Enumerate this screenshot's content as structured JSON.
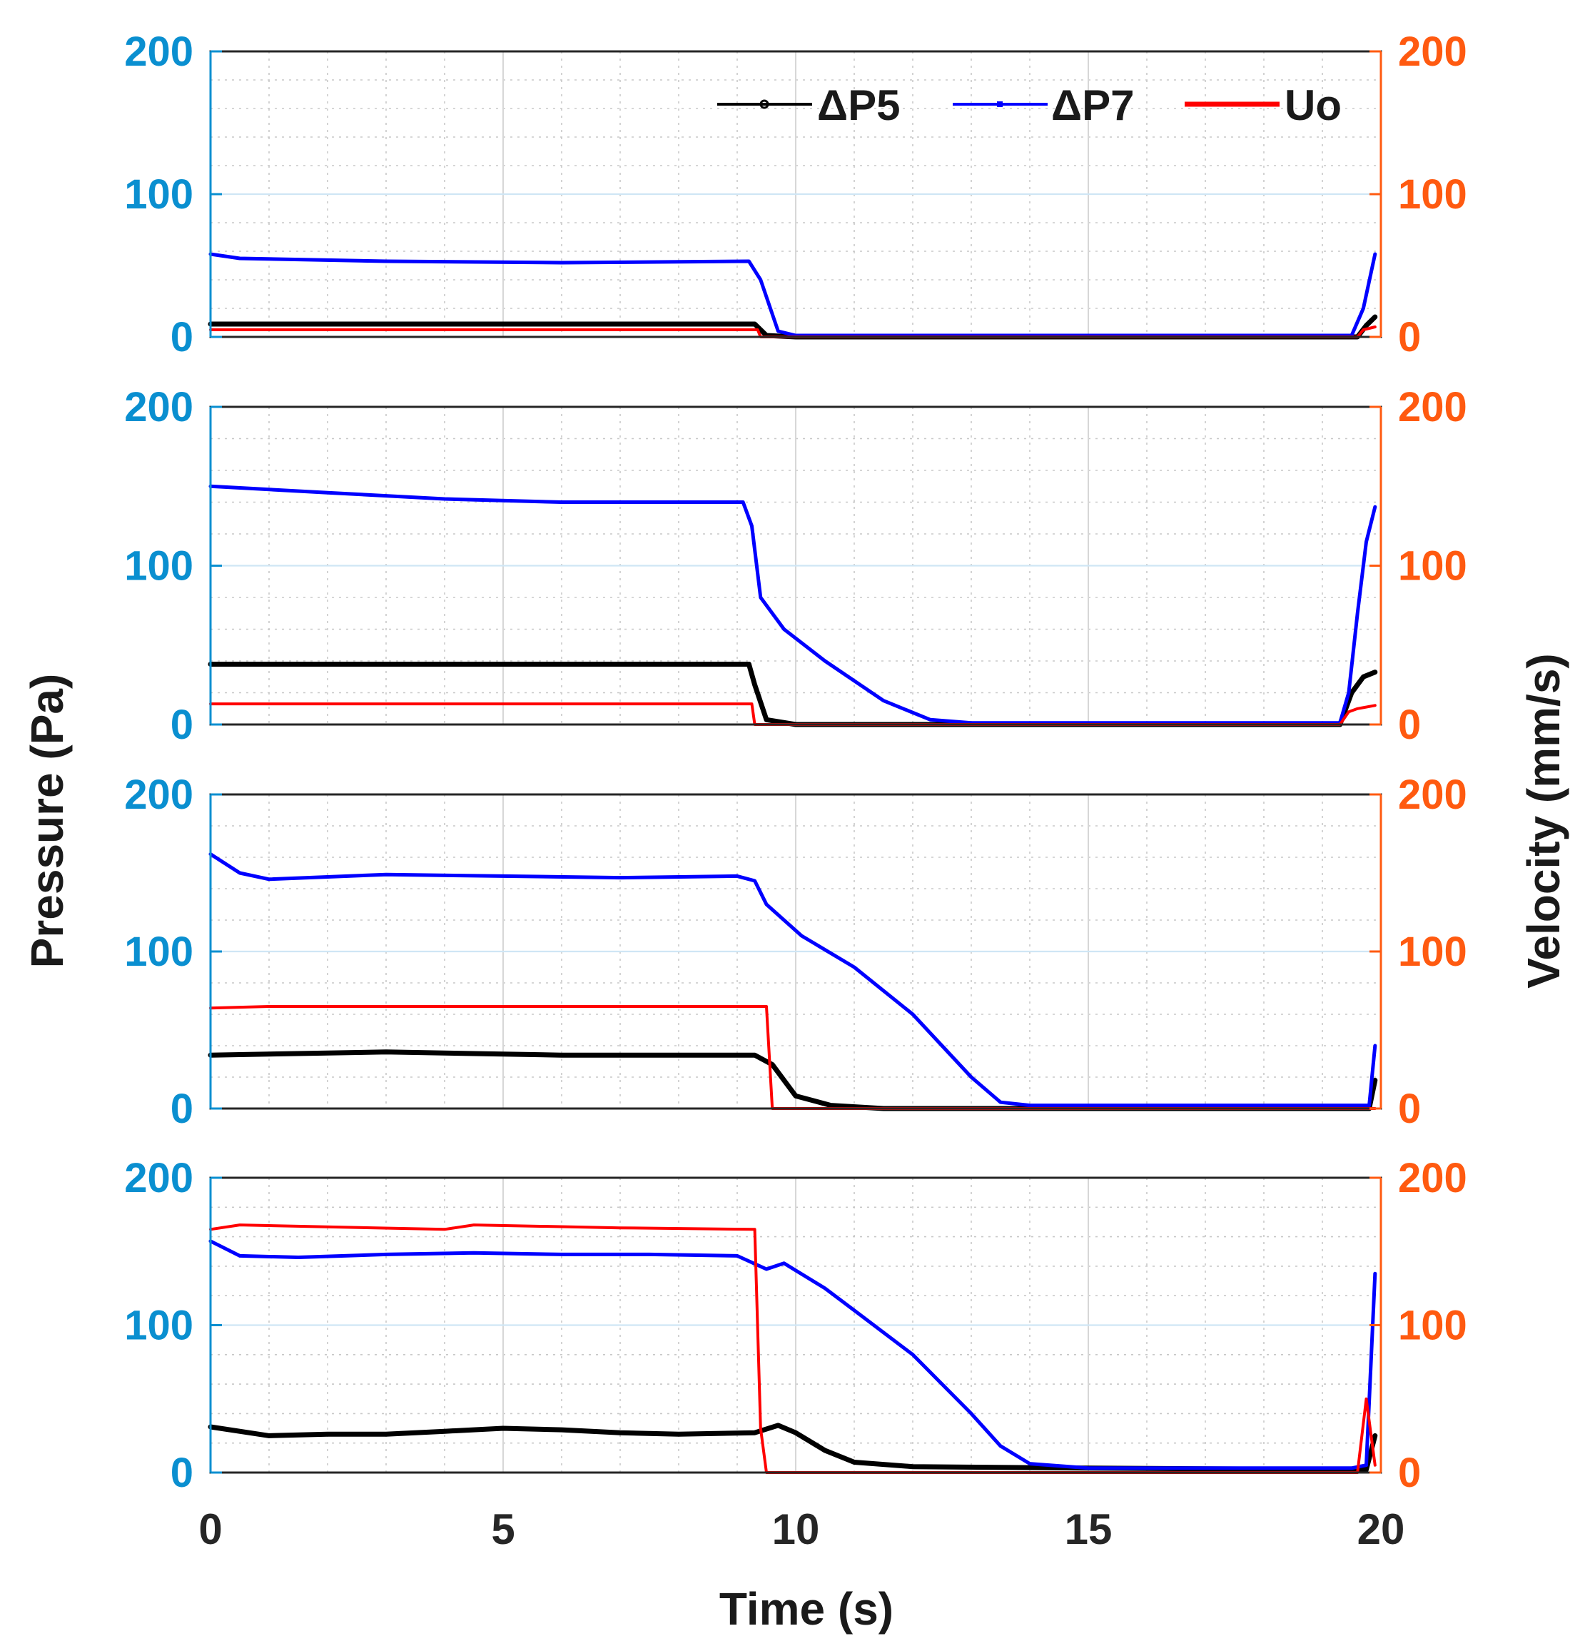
{
  "chart_data": {
    "type": "line",
    "x_label": "Time (s)",
    "y_left_label": "Pressure (Pa)",
    "y_right_label": "Velocity (mm/s)",
    "xlim": [
      0,
      20
    ],
    "x_ticks": [
      "0",
      "5",
      "10",
      "15",
      "20"
    ],
    "grid": "on (major and dotted minor)",
    "legend": {
      "placement": "top-right of top panel",
      "entries": [
        "ΔP5",
        "ΔP7",
        "Uo"
      ]
    },
    "colors": {
      "dp5": "#000000",
      "dp7": "#0000ff",
      "uo": "#ff0000",
      "left_axis": "#0a8fd0",
      "right_axis": "#ff5a10"
    },
    "panels": [
      {
        "ylim_left": [
          0,
          200
        ],
        "ylim_right": [
          0,
          200
        ],
        "left_ticks": [
          "0",
          "100",
          "200"
        ],
        "right_ticks": [
          "0",
          "100",
          "200"
        ],
        "series": [
          {
            "name": "ΔP5",
            "axis": "left",
            "points": [
              [
                0,
                9
              ],
              [
                9.3,
                9
              ],
              [
                9.5,
                1
              ],
              [
                10,
                0
              ],
              [
                19.6,
                0
              ],
              [
                19.75,
                8
              ],
              [
                19.9,
                14
              ]
            ]
          },
          {
            "name": "ΔP7",
            "axis": "left",
            "points": [
              [
                0,
                58
              ],
              [
                0.5,
                55
              ],
              [
                3,
                53
              ],
              [
                6,
                52
              ],
              [
                9.2,
                53
              ],
              [
                9.4,
                40
              ],
              [
                9.7,
                4
              ],
              [
                10,
                1
              ],
              [
                19.5,
                1
              ],
              [
                19.7,
                20
              ],
              [
                19.9,
                58
              ]
            ]
          },
          {
            "name": "Uo",
            "axis": "right",
            "points": [
              [
                0,
                5
              ],
              [
                9.35,
                5
              ],
              [
                9.4,
                0
              ],
              [
                19.6,
                0
              ],
              [
                19.7,
                5
              ],
              [
                19.9,
                7
              ]
            ]
          }
        ]
      },
      {
        "ylim_left": [
          0,
          200
        ],
        "ylim_right": [
          0,
          200
        ],
        "left_ticks": [
          "0",
          "100",
          "200"
        ],
        "right_ticks": [
          "0",
          "100",
          "200"
        ],
        "series": [
          {
            "name": "ΔP5",
            "axis": "left",
            "points": [
              [
                0,
                38
              ],
              [
                9.2,
                38
              ],
              [
                9.3,
                25
              ],
              [
                9.5,
                3
              ],
              [
                10,
                0
              ],
              [
                19.3,
                0
              ],
              [
                19.5,
                20
              ],
              [
                19.7,
                30
              ],
              [
                19.9,
                33
              ]
            ]
          },
          {
            "name": "ΔP7",
            "axis": "left",
            "points": [
              [
                0,
                150
              ],
              [
                2,
                146
              ],
              [
                4,
                142
              ],
              [
                6,
                140
              ],
              [
                9.1,
                140
              ],
              [
                9.25,
                125
              ],
              [
                9.4,
                80
              ],
              [
                9.8,
                60
              ],
              [
                10.5,
                40
              ],
              [
                11.5,
                15
              ],
              [
                12.3,
                3
              ],
              [
                13,
                1
              ],
              [
                19.3,
                1
              ],
              [
                19.45,
                20
              ],
              [
                19.6,
                70
              ],
              [
                19.75,
                115
              ],
              [
                19.9,
                137
              ]
            ]
          },
          {
            "name": "Uo",
            "axis": "right",
            "points": [
              [
                0,
                13
              ],
              [
                9.25,
                13
              ],
              [
                9.3,
                0
              ],
              [
                19.3,
                0
              ],
              [
                19.45,
                8
              ],
              [
                19.6,
                10
              ],
              [
                19.9,
                12
              ]
            ]
          }
        ]
      },
      {
        "ylim_left": [
          0,
          200
        ],
        "ylim_right": [
          0,
          200
        ],
        "left_ticks": [
          "0",
          "100",
          "200"
        ],
        "right_ticks": [
          "0",
          "100",
          "200"
        ],
        "series": [
          {
            "name": "ΔP5",
            "axis": "left",
            "points": [
              [
                0,
                34
              ],
              [
                3,
                36
              ],
              [
                6,
                34
              ],
              [
                9.3,
                34
              ],
              [
                9.6,
                28
              ],
              [
                10,
                8
              ],
              [
                10.6,
                2
              ],
              [
                11.5,
                0
              ],
              [
                19.8,
                0
              ],
              [
                19.9,
                18
              ]
            ]
          },
          {
            "name": "ΔP7",
            "axis": "left",
            "points": [
              [
                0,
                162
              ],
              [
                0.5,
                150
              ],
              [
                1,
                146
              ],
              [
                3,
                149
              ],
              [
                5,
                148
              ],
              [
                7,
                147
              ],
              [
                9,
                148
              ],
              [
                9.3,
                145
              ],
              [
                9.5,
                130
              ],
              [
                10.1,
                110
              ],
              [
                11,
                90
              ],
              [
                12,
                60
              ],
              [
                13,
                20
              ],
              [
                13.5,
                4
              ],
              [
                14,
                2
              ],
              [
                19.8,
                2
              ],
              [
                19.9,
                40
              ]
            ]
          },
          {
            "name": "Uo",
            "axis": "right",
            "points": [
              [
                0,
                64
              ],
              [
                1,
                65
              ],
              [
                9.5,
                65
              ],
              [
                9.6,
                0
              ],
              [
                19.9,
                0
              ]
            ]
          }
        ]
      },
      {
        "ylim_left": [
          0,
          200
        ],
        "ylim_right": [
          0,
          200
        ],
        "left_ticks": [
          "0",
          "100",
          "200"
        ],
        "right_ticks": [
          "0",
          "100",
          "200"
        ],
        "series": [
          {
            "name": "ΔP5",
            "axis": "left",
            "points": [
              [
                0,
                31
              ],
              [
                1,
                25
              ],
              [
                2,
                26
              ],
              [
                3,
                26
              ],
              [
                4,
                28
              ],
              [
                5,
                30
              ],
              [
                6,
                29
              ],
              [
                7,
                27
              ],
              [
                8,
                26
              ],
              [
                9.3,
                27
              ],
              [
                9.7,
                32
              ],
              [
                10,
                27
              ],
              [
                10.5,
                15
              ],
              [
                11,
                7
              ],
              [
                12,
                4
              ],
              [
                15,
                3
              ],
              [
                19.5,
                2
              ],
              [
                19.75,
                2
              ],
              [
                19.9,
                25
              ]
            ]
          },
          {
            "name": "ΔP7",
            "axis": "left",
            "points": [
              [
                0,
                157
              ],
              [
                0.5,
                147
              ],
              [
                1.5,
                146
              ],
              [
                3,
                148
              ],
              [
                4.5,
                149
              ],
              [
                6,
                148
              ],
              [
                7.5,
                148
              ],
              [
                9,
                147
              ],
              [
                9.5,
                138
              ],
              [
                9.8,
                142
              ],
              [
                10.5,
                125
              ],
              [
                11,
                110
              ],
              [
                12,
                80
              ],
              [
                13,
                40
              ],
              [
                13.5,
                18
              ],
              [
                14,
                6
              ],
              [
                15,
                3
              ],
              [
                19.5,
                3
              ],
              [
                19.75,
                5
              ],
              [
                19.9,
                135
              ]
            ]
          },
          {
            "name": "Uo",
            "axis": "right",
            "points": [
              [
                0,
                165
              ],
              [
                0.5,
                168
              ],
              [
                4,
                165
              ],
              [
                4.5,
                168
              ],
              [
                7,
                166
              ],
              [
                9.3,
                165
              ],
              [
                9.4,
                30
              ],
              [
                9.5,
                0
              ],
              [
                19.6,
                0
              ],
              [
                19.75,
                50
              ],
              [
                19.9,
                5
              ]
            ]
          }
        ]
      }
    ]
  }
}
